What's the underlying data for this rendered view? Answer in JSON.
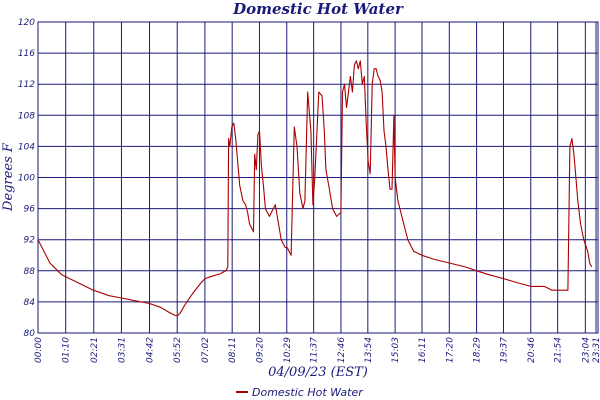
{
  "chart_data": {
    "type": "line",
    "title": "Domestic Hot Water",
    "xlabel": "04/09/23 (EST)",
    "ylabel": "Degrees F",
    "ylim": [
      80,
      120
    ],
    "yticks": [
      80,
      84,
      88,
      92,
      96,
      100,
      104,
      108,
      112,
      116,
      120
    ],
    "ytick_labels": [
      "80",
      "84",
      "88",
      "92",
      "96",
      "100",
      "104",
      "108",
      "112",
      "116",
      "120"
    ],
    "xlim": [
      0,
      1416
    ],
    "xticks": [
      0,
      70,
      141,
      211,
      282,
      352,
      422,
      491,
      560,
      629,
      697,
      766,
      834,
      903,
      971,
      1040,
      1109,
      1177,
      1246,
      1314,
      1384,
      1411
    ],
    "xtick_labels": [
      "00:00",
      "01:10",
      "02:21",
      "03:31",
      "04:42",
      "05:52",
      "07:02",
      "08:11",
      "09:20",
      "10:29",
      "11:37",
      "12:46",
      "13:54",
      "15:03",
      "16:11",
      "17:20",
      "18:29",
      "19:37",
      "20:46",
      "21:54",
      "23:04",
      "23:31"
    ],
    "grid": true,
    "legend": "bottom",
    "line_color": "#aa0000",
    "series": [
      {
        "name": "Domestic Hot Water",
        "x": [
          0,
          10,
          30,
          60,
          100,
          140,
          180,
          211,
          240,
          282,
          310,
          330,
          345,
          352,
          360,
          370,
          390,
          410,
          422,
          440,
          460,
          475,
          480,
          482,
          485,
          490,
          495,
          500,
          505,
          510,
          518,
          525,
          530,
          535,
          540,
          545,
          548,
          552,
          556,
          560,
          565,
          570,
          575,
          585,
          600,
          615,
          625,
          630,
          635,
          640,
          648,
          655,
          662,
          670,
          675,
          682,
          690,
          695,
          700,
          710,
          718,
          724,
          728,
          735,
          745,
          755,
          766,
          770,
          775,
          780,
          785,
          790,
          795,
          800,
          805,
          810,
          815,
          820,
          825,
          830,
          835,
          840,
          845,
          850,
          855,
          860,
          865,
          870,
          875,
          880,
          885,
          890,
          895,
          898,
          900,
          903,
          910,
          920,
          935,
          950,
          971,
          1000,
          1040,
          1080,
          1109,
          1140,
          1177,
          1210,
          1246,
          1280,
          1300,
          1314,
          1330,
          1340,
          1345,
          1350,
          1355,
          1360,
          1365,
          1372,
          1380,
          1390,
          1395,
          1400
        ],
        "y": [
          92,
          91,
          89,
          87.5,
          86.5,
          85.5,
          84.8,
          84.5,
          84.2,
          83.8,
          83.3,
          82.7,
          82.3,
          82.2,
          82.6,
          83.5,
          85,
          86.3,
          87,
          87.3,
          87.6,
          88,
          88.5,
          105,
          104,
          106.5,
          107,
          105,
          102,
          99,
          97,
          96.5,
          95.5,
          94,
          93.5,
          93,
          103,
          101,
          105.5,
          106,
          101.5,
          99,
          96,
          95,
          96.5,
          92,
          91,
          91,
          90.5,
          90,
          106.5,
          104,
          98,
          96,
          97,
          111,
          106,
          96.5,
          100,
          111,
          110.5,
          106,
          101,
          99,
          96,
          95,
          95.5,
          111,
          112,
          109,
          111,
          113,
          111,
          114.5,
          115,
          114,
          115,
          112,
          113,
          107,
          102,
          100.5,
          112,
          114,
          114,
          113,
          112.5,
          111,
          106,
          104,
          101,
          98.5,
          98.5,
          104,
          108,
          100,
          97,
          95,
          92,
          90.5,
          90,
          89.5,
          89,
          88.5,
          88,
          87.5,
          87,
          86.5,
          86,
          86,
          85.5,
          85.5,
          85.5,
          85.5,
          104,
          105,
          103,
          100,
          97,
          94,
          92,
          90.5,
          89,
          88.5
        ]
      }
    ]
  }
}
